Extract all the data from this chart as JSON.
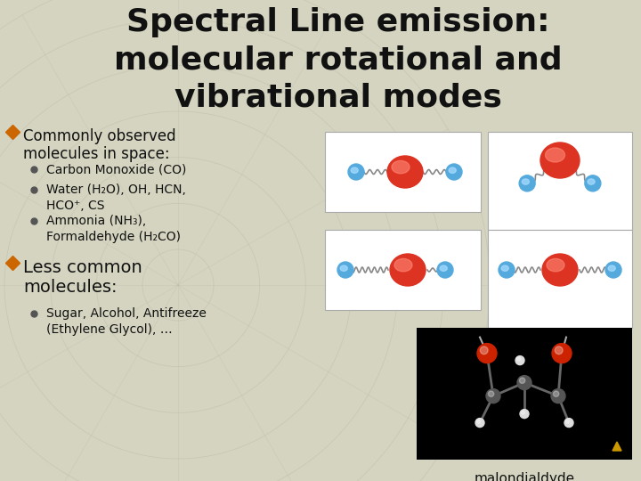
{
  "title_line1": "Spectral Line emission:",
  "title_line2": "molecular rotational and",
  "title_line3": "vibrational modes",
  "bg_color": "#d4d4c0",
  "title_color": "#111111",
  "bullet1_main": "Commonly observed\nmolecules in space:",
  "bullet1_sub": [
    "Carbon Monoxide (CO)",
    "Water (H₂O), OH, HCN,\nHCO⁺, CS",
    "Ammonia (NH₃),\nFormaldehyde (H₂CO)"
  ],
  "bullet2_main": "Less common\nmolecules:",
  "bullet2_sub": [
    "Sugar, Alcohol, Antifreeze\n(Ethylene Glycol), …"
  ],
  "caption": "malondialdyde",
  "text_color": "#111111",
  "bullet_color": "#cc6600",
  "grid_color": "#bcbcaa"
}
